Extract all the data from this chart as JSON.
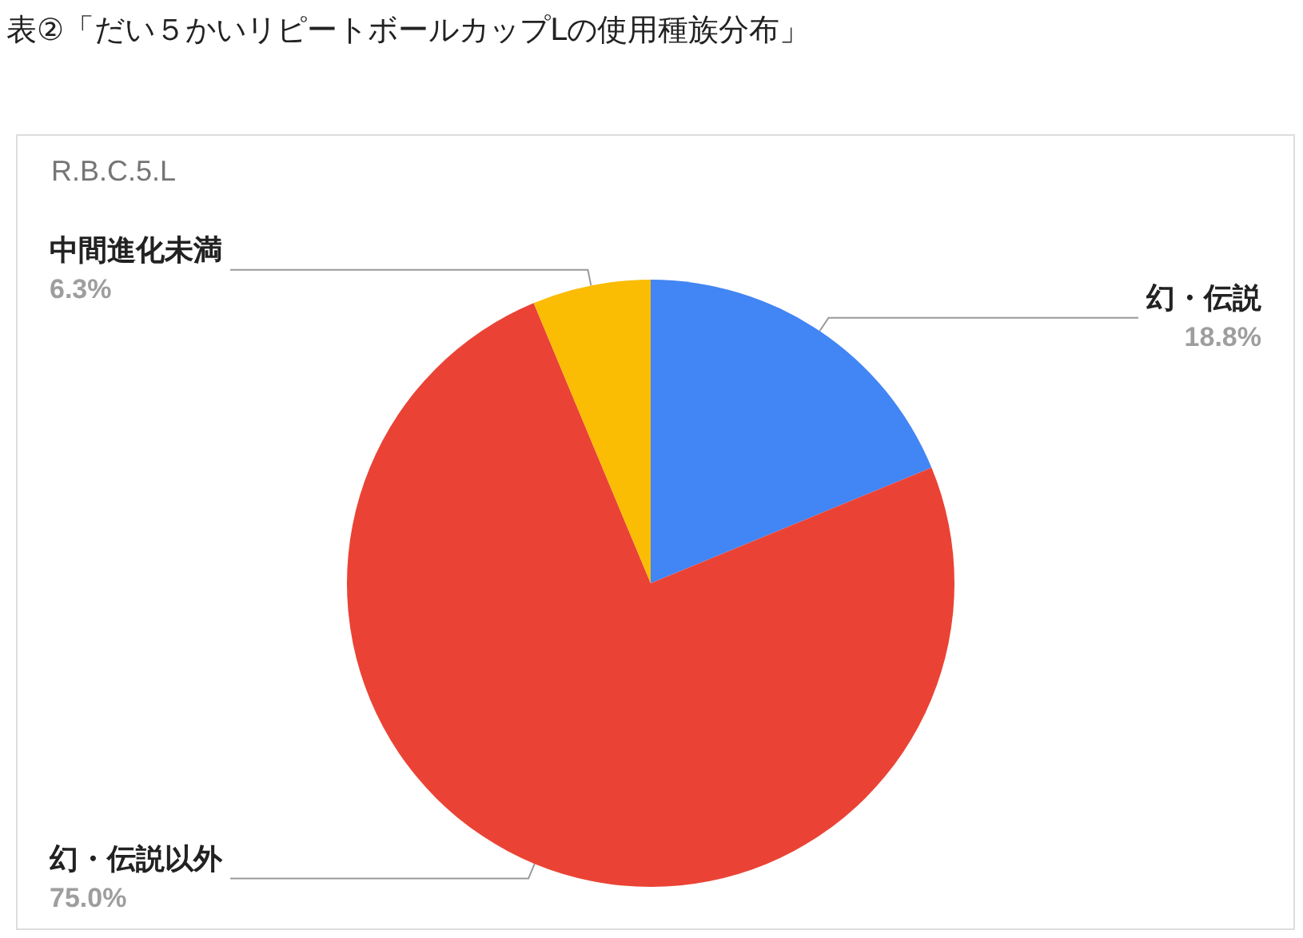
{
  "chart_data": {
    "type": "pie",
    "title": "表②「だい５かいリピートボールカップLの使用種族分布」",
    "subtitle": "R.B.C.5.L",
    "categories": [
      "幻・伝説",
      "幻・伝説以外",
      "中間進化未満"
    ],
    "values": [
      18.8,
      75.0,
      6.3
    ],
    "value_labels": [
      "18.8%",
      "75.0%",
      "6.3%"
    ],
    "colors": [
      "#4285f4",
      "#ea4335",
      "#fbbc04"
    ],
    "legend": false
  }
}
